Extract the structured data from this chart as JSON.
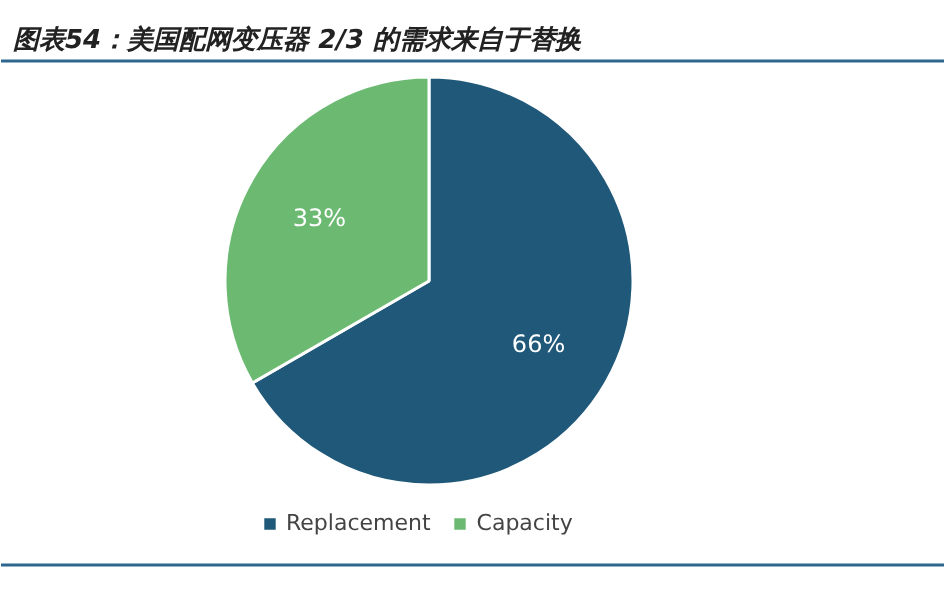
{
  "chart_data": {
    "type": "pie",
    "title": "图表54：美国配网变压器 2/3 的需求来自于替换",
    "categories": [
      "Replacement",
      "Capacity"
    ],
    "values": [
      66,
      33
    ],
    "colors": [
      "#1f5878",
      "#6cba72"
    ],
    "value_labels": [
      "66%",
      "33%"
    ],
    "legend": "bottom"
  }
}
